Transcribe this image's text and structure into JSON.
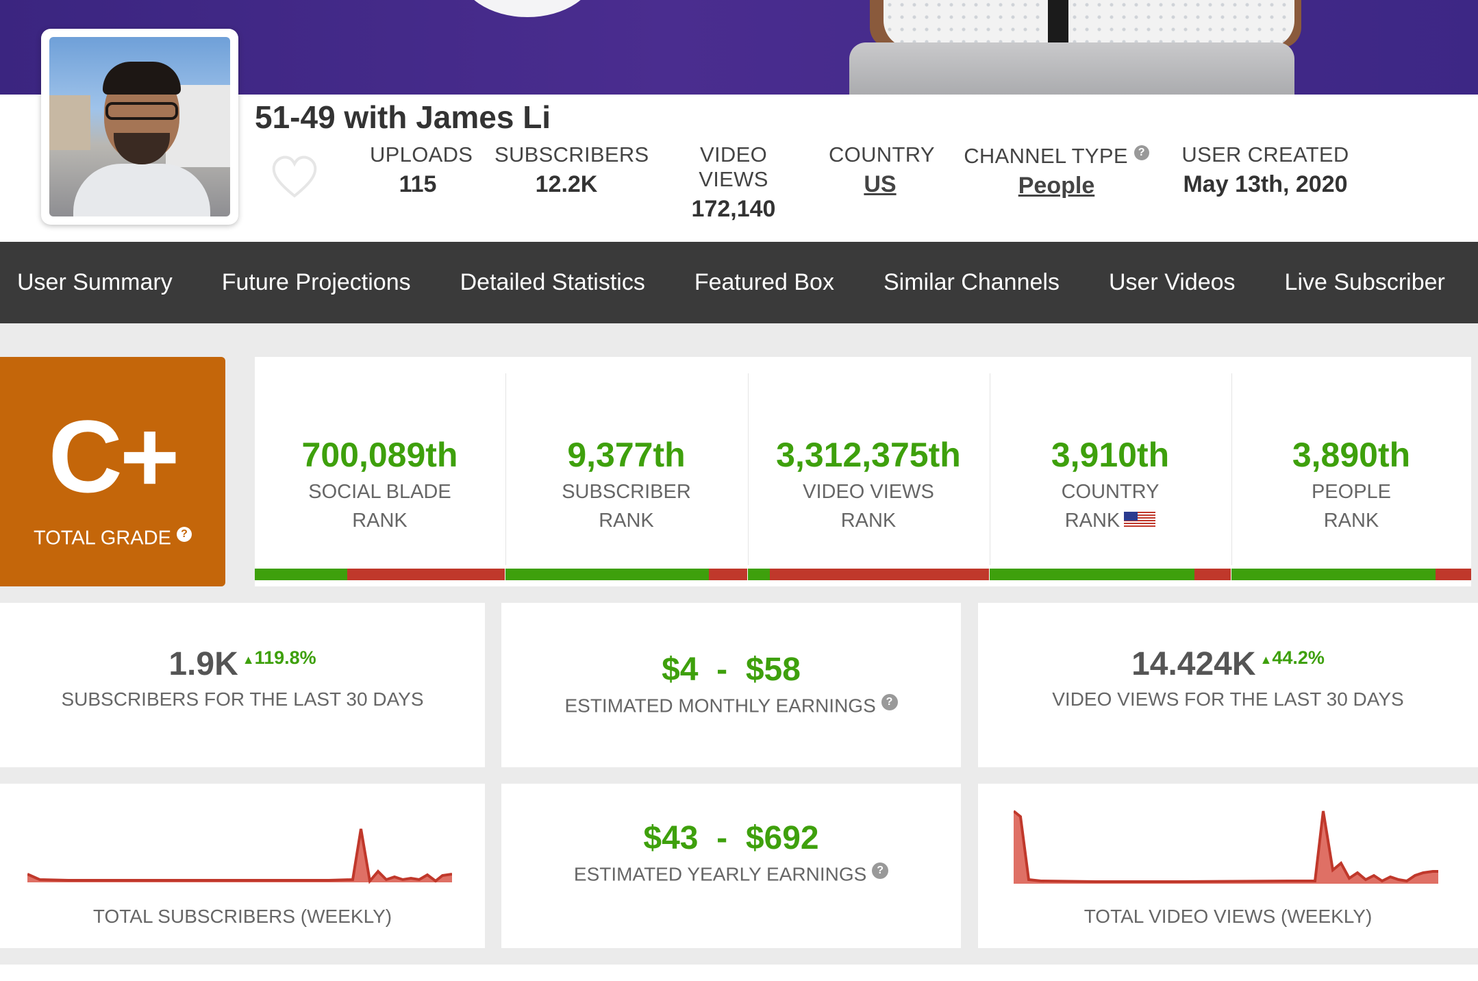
{
  "channel": {
    "name": "51-49 with James Li",
    "stats": [
      {
        "label": "UPLOADS",
        "value": "115"
      },
      {
        "label": "SUBSCRIBERS",
        "value": "12.2K"
      },
      {
        "label": "VIDEO VIEWS",
        "value": "172,140"
      },
      {
        "label": "COUNTRY",
        "value": "US"
      },
      {
        "label": "CHANNEL TYPE",
        "value": "People"
      },
      {
        "label": "USER CREATED",
        "value": "May 13th, 2020"
      }
    ]
  },
  "nav": {
    "items": [
      "User Summary",
      "Future Projections",
      "Detailed Statistics",
      "Featured Box",
      "Similar Channels",
      "User Videos",
      "Live Subscriber"
    ]
  },
  "grade": {
    "letter": "C+",
    "label": "TOTAL GRADE"
  },
  "ranks": [
    {
      "value": "700,089th",
      "line1": "SOCIAL BLADE",
      "line2": "RANK",
      "fill": 0.37
    },
    {
      "value": "9,377th",
      "line1": "SUBSCRIBER",
      "line2": "RANK",
      "fill": 0.84
    },
    {
      "value": "3,312,375th",
      "line1": "VIDEO VIEWS",
      "line2": "RANK",
      "fill": 0.09
    },
    {
      "value": "3,910th",
      "line1": "COUNTRY",
      "line2": "RANK",
      "fill": 0.85
    },
    {
      "value": "3,890th",
      "line1": "PEOPLE",
      "line2": "RANK",
      "fill": 0.85
    }
  ],
  "cards": {
    "subs30": {
      "value": "1.9K",
      "change": "119.8%",
      "caption": "SUBSCRIBERS FOR THE LAST 30 DAYS"
    },
    "monthly": {
      "low": "$4",
      "sep": "-",
      "high": "$58",
      "caption": "ESTIMATED MONTHLY EARNINGS"
    },
    "views30": {
      "value": "14.424K",
      "change": "44.2%",
      "caption": "VIDEO VIEWS FOR THE LAST 30 DAYS"
    },
    "subs_weekly": {
      "caption": "TOTAL SUBSCRIBERS (WEEKLY)"
    },
    "yearly": {
      "low": "$43",
      "sep": "-",
      "high": "$692",
      "caption": "ESTIMATED YEARLY EARNINGS"
    },
    "views_weekly": {
      "caption": "TOTAL VIDEO VIEWS (WEEKLY)"
    }
  },
  "colors": {
    "green": "#3ea00c",
    "red": "#c0382b",
    "grade": "#c4660a",
    "nav": "#3a3a3a",
    "banner": "#4a2d8f"
  },
  "icons": [
    "heart-icon",
    "help-icon",
    "us-flag-icon"
  ]
}
